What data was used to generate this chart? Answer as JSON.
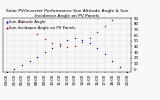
{
  "title": "Solar PV/Inverter Performance Sun Altitude Angle & Sun Incidence Angle on PV Panels",
  "blue_label": "Sun Altitude Angle",
  "red_label": "Sun Incidence Angle on PV Panels",
  "x_vals": [
    4,
    5,
    6,
    7,
    8,
    9,
    10,
    11,
    12,
    13,
    14,
    15,
    16,
    17,
    18,
    19,
    20
  ],
  "blue_vals": [
    -5,
    1,
    7,
    14,
    22,
    30,
    38,
    45,
    51,
    54,
    52,
    46,
    37,
    26,
    14,
    3,
    -5
  ],
  "red_vals": [
    null,
    null,
    83,
    73,
    62,
    53,
    46,
    41,
    39,
    41,
    47,
    55,
    65,
    76,
    86,
    null,
    null
  ],
  "ylim": [
    -5,
    90
  ],
  "ytick_vals": [
    0,
    10,
    20,
    30,
    40,
    50,
    60,
    70,
    80,
    90
  ],
  "ytick_labels": [
    "0",
    "10",
    "20",
    "30",
    "40",
    "50",
    "60",
    "70",
    "80",
    "90"
  ],
  "x_tick_positions": [
    4,
    5,
    6,
    7,
    8,
    9,
    10,
    11,
    12,
    13,
    14,
    15,
    16,
    17,
    18,
    19,
    20
  ],
  "x_tick_labels": [
    "04:00",
    "05:00",
    "06:00",
    "07:00",
    "08:00",
    "09:00",
    "10:00",
    "11:00",
    "12:00",
    "13:00",
    "14:00",
    "15:00",
    "16:00",
    "17:00",
    "18:00",
    "19:00",
    "20:00"
  ],
  "blue_color": "#0000cc",
  "red_color": "#cc0000",
  "grid_color": "#bbbbbb",
  "bg_color": "#f8f8f8",
  "title_fontsize": 3.2,
  "tick_fontsize": 2.8,
  "legend_fontsize": 2.8,
  "marker_size": 1.0
}
